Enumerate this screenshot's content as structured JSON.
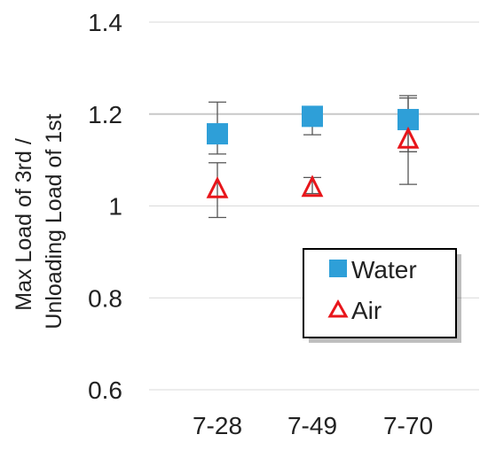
{
  "chart_data": {
    "type": "scatter",
    "title": "",
    "xlabel": "",
    "ylabel": "Max Load of 3rd / Unloading Load of 1st",
    "ylabel_lines": [
      "Max Load of 3rd /",
      "Unloading Load of 1st"
    ],
    "categories": [
      "7-28",
      "7-49",
      "7-70"
    ],
    "ylim": [
      0.6,
      1.4
    ],
    "yticks": [
      0.6,
      0.8,
      1.0,
      1.2,
      1.4
    ],
    "ytick_labels": [
      "0.6",
      "0.8",
      "1",
      "1.2",
      "1.4"
    ],
    "grid": true,
    "legend_position": "bottom-right",
    "series": [
      {
        "name": "Water",
        "marker": "square",
        "color": "#2e9fd8",
        "values": [
          1.157,
          1.195,
          1.188
        ],
        "error_low": [
          1.113,
          1.155,
          1.118
        ],
        "error_high": [
          1.226,
          1.21,
          1.24
        ]
      },
      {
        "name": "Air",
        "marker": "triangle-open",
        "color": "#e8161b",
        "values": [
          1.037,
          1.04,
          1.145
        ],
        "error_low": [
          0.975,
          1.027,
          1.047
        ],
        "error_high": [
          1.094,
          1.062,
          1.235
        ]
      }
    ]
  }
}
